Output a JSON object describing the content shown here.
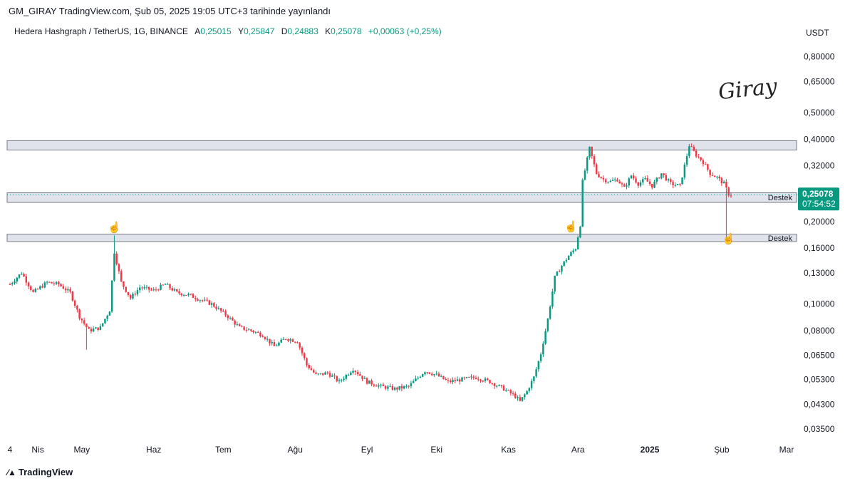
{
  "header": {
    "publish_line": "GM_GIRAY TradingView.com, Şub 05, 2025 19:05 UTC+3 tarihinde yayınlandı"
  },
  "legend": {
    "symbol": "Hedera Hashgraph / TetherUS, 1G, BINANCE",
    "open_key": "A",
    "open": "0,25015",
    "high_key": "Y",
    "high": "0,25847",
    "low_key": "D",
    "low": "0,24883",
    "close_key": "K",
    "close": "0,25078",
    "change": "+0,00063 (+0,25%)"
  },
  "watermark": {
    "signature": "Giray"
  },
  "footer": {
    "brand": "TradingView"
  },
  "chart_data": {
    "type": "candlestick",
    "currency": "USDT",
    "yscale": "log",
    "ylim": [
      0.031,
      0.9
    ],
    "y_ticks": [
      {
        "value": 0.8,
        "label": "0,80000"
      },
      {
        "value": 0.65,
        "label": "0,65000"
      },
      {
        "value": 0.5,
        "label": "0,50000"
      },
      {
        "value": 0.4,
        "label": "0,40000"
      },
      {
        "value": 0.32,
        "label": "0,32000"
      },
      {
        "value": 0.2,
        "label": "0,20000"
      },
      {
        "value": 0.16,
        "label": "0,16000"
      },
      {
        "value": 0.13,
        "label": "0,13000"
      },
      {
        "value": 0.1,
        "label": "0,10000"
      },
      {
        "value": 0.08,
        "label": "0,08000"
      },
      {
        "value": 0.065,
        "label": "0,06500"
      },
      {
        "value": 0.053,
        "label": "0,05300"
      },
      {
        "value": 0.043,
        "label": "0,04300"
      },
      {
        "value": 0.035,
        "label": "0,03500"
      }
    ],
    "x_ticks": [
      {
        "date": "2024-03-31",
        "label": "4",
        "bold": false
      },
      {
        "date": "2024-04-12",
        "label": "Nis",
        "bold": false
      },
      {
        "date": "2024-05-01",
        "label": "May",
        "bold": false
      },
      {
        "date": "2024-06-01",
        "label": "Haz",
        "bold": false
      },
      {
        "date": "2024-07-01",
        "label": "Tem",
        "bold": false
      },
      {
        "date": "2024-08-01",
        "label": "Ağu",
        "bold": false
      },
      {
        "date": "2024-09-01",
        "label": "Eyl",
        "bold": false
      },
      {
        "date": "2024-10-01",
        "label": "Eki",
        "bold": false
      },
      {
        "date": "2024-11-01",
        "label": "Kas",
        "bold": false
      },
      {
        "date": "2024-12-01",
        "label": "Ara",
        "bold": false
      },
      {
        "date": "2025-01-01",
        "label": "2025",
        "bold": true
      },
      {
        "date": "2025-02-01",
        "label": "Şub",
        "bold": false
      },
      {
        "date": "2025-03-01",
        "label": "Mar",
        "bold": false
      }
    ],
    "x_range": [
      "2024-03-31",
      "2025-03-01"
    ],
    "price_key_points": [
      [
        "2024-03-31",
        0.118
      ],
      [
        "2024-04-05",
        0.13
      ],
      [
        "2024-04-10",
        0.11
      ],
      [
        "2024-04-16",
        0.12
      ],
      [
        "2024-04-21",
        0.118
      ],
      [
        "2024-04-26",
        0.11
      ],
      [
        "2024-04-30",
        0.09
      ],
      [
        "2024-05-04",
        0.08
      ],
      [
        "2024-05-09",
        0.082
      ],
      [
        "2024-05-13",
        0.095
      ],
      [
        "2024-05-15",
        0.155
      ],
      [
        "2024-05-18",
        0.12
      ],
      [
        "2024-05-22",
        0.105
      ],
      [
        "2024-05-26",
        0.115
      ],
      [
        "2024-06-01",
        0.112
      ],
      [
        "2024-06-06",
        0.118
      ],
      [
        "2024-06-11",
        0.11
      ],
      [
        "2024-06-16",
        0.108
      ],
      [
        "2024-06-22",
        0.103
      ],
      [
        "2024-06-26",
        0.1
      ],
      [
        "2024-07-03",
        0.09
      ],
      [
        "2024-07-08",
        0.082
      ],
      [
        "2024-07-13",
        0.08
      ],
      [
        "2024-07-18",
        0.077
      ],
      [
        "2024-07-23",
        0.07
      ],
      [
        "2024-07-28",
        0.075
      ],
      [
        "2024-08-02",
        0.073
      ],
      [
        "2024-08-06",
        0.06
      ],
      [
        "2024-08-10",
        0.055
      ],
      [
        "2024-08-15",
        0.056
      ],
      [
        "2024-08-20",
        0.052
      ],
      [
        "2024-08-26",
        0.058
      ],
      [
        "2024-09-01",
        0.052
      ],
      [
        "2024-09-07",
        0.05
      ],
      [
        "2024-09-13",
        0.049
      ],
      [
        "2024-09-19",
        0.05
      ],
      [
        "2024-09-26",
        0.057
      ],
      [
        "2024-10-01",
        0.055
      ],
      [
        "2024-10-06",
        0.052
      ],
      [
        "2024-10-12",
        0.053
      ],
      [
        "2024-10-18",
        0.054
      ],
      [
        "2024-10-24",
        0.052
      ],
      [
        "2024-10-30",
        0.049
      ],
      [
        "2024-11-04",
        0.046
      ],
      [
        "2024-11-06",
        0.044
      ],
      [
        "2024-11-09",
        0.048
      ],
      [
        "2024-11-12",
        0.054
      ],
      [
        "2024-11-15",
        0.066
      ],
      [
        "2024-11-18",
        0.088
      ],
      [
        "2024-11-21",
        0.125
      ],
      [
        "2024-11-24",
        0.138
      ],
      [
        "2024-11-27",
        0.15
      ],
      [
        "2024-11-30",
        0.16
      ],
      [
        "2024-12-02",
        0.195
      ],
      [
        "2024-12-03",
        0.28
      ],
      [
        "2024-12-06",
        0.37
      ],
      [
        "2024-12-09",
        0.3
      ],
      [
        "2024-12-12",
        0.285
      ],
      [
        "2024-12-15",
        0.28
      ],
      [
        "2024-12-18",
        0.285
      ],
      [
        "2024-12-21",
        0.265
      ],
      [
        "2024-12-24",
        0.295
      ],
      [
        "2024-12-27",
        0.275
      ],
      [
        "2024-12-30",
        0.285
      ],
      [
        "2025-01-02",
        0.27
      ],
      [
        "2025-01-06",
        0.3
      ],
      [
        "2025-01-10",
        0.275
      ],
      [
        "2025-01-14",
        0.27
      ],
      [
        "2025-01-16",
        0.32
      ],
      [
        "2025-01-18",
        0.38
      ],
      [
        "2025-01-21",
        0.35
      ],
      [
        "2025-01-24",
        0.33
      ],
      [
        "2025-01-27",
        0.3
      ],
      [
        "2025-01-30",
        0.29
      ],
      [
        "2025-02-02",
        0.275
      ],
      [
        "2025-02-04",
        0.252
      ],
      [
        "2025-02-05",
        0.25078
      ]
    ],
    "support_zones": [
      {
        "low": 0.365,
        "high": 0.395,
        "label": ""
      },
      {
        "low": 0.235,
        "high": 0.255,
        "label": "Destek"
      },
      {
        "low": 0.169,
        "high": 0.18,
        "label": "Destek"
      }
    ],
    "markers": [
      {
        "date": "2024-05-15",
        "price": 0.185
      },
      {
        "date": "2024-11-28",
        "price": 0.186
      },
      {
        "date": "2025-02-04",
        "price": 0.168
      }
    ],
    "last_price": {
      "value": 0.25078,
      "label": "0,25078",
      "countdown": "07:54:52"
    },
    "colors": {
      "up": "#089981",
      "down": "#f23645",
      "zone_fill": "#e0e3eb",
      "zone_stroke": "#787b86",
      "axis_text": "#131722",
      "last_price_bg": "#089981"
    }
  }
}
